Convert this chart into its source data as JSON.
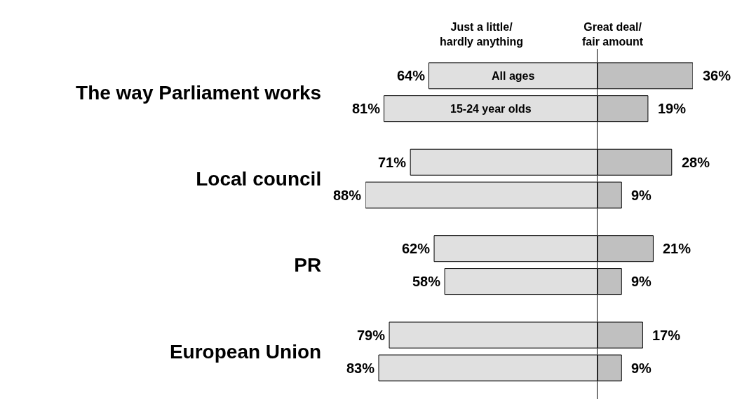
{
  "chart_data": [
    {
      "type": "bar",
      "orientation": "horizontal",
      "title": "Just a little/\nhardly anything",
      "categories": [
        "The way Parliament works",
        "Local council",
        "PR",
        "European Union"
      ],
      "series": [
        {
          "name": "All ages",
          "color": "#e0e0e0",
          "values": [
            64,
            71,
            62,
            79
          ],
          "value_labels": [
            "64%",
            "71%",
            "62%",
            "79%"
          ]
        },
        {
          "name": "15-24 year olds",
          "color": "#e0e0e0",
          "values": [
            81,
            88,
            58,
            83
          ],
          "value_labels": [
            "81%",
            "88%",
            "58%",
            "83%"
          ]
        }
      ],
      "xlim": [
        88,
        0
      ],
      "tick_labels": "y"
    },
    {
      "type": "bar",
      "orientation": "horizontal",
      "title": "Great deal/\nfair amount",
      "categories": [
        null,
        null,
        null,
        null
      ],
      "series": [
        {
          "color": "#c0c0c0",
          "values": [
            36,
            28,
            21,
            17
          ],
          "value_labels": [
            "36%",
            "28%",
            "21%",
            "17%"
          ]
        },
        {
          "color": "#c0c0c0",
          "values": [
            19,
            9,
            9,
            9
          ],
          "value_labels": [
            "19%",
            "9%",
            "9%",
            "9%"
          ]
        }
      ],
      "xlim": [
        0,
        36
      ],
      "tick_labels": false
    }
  ]
}
